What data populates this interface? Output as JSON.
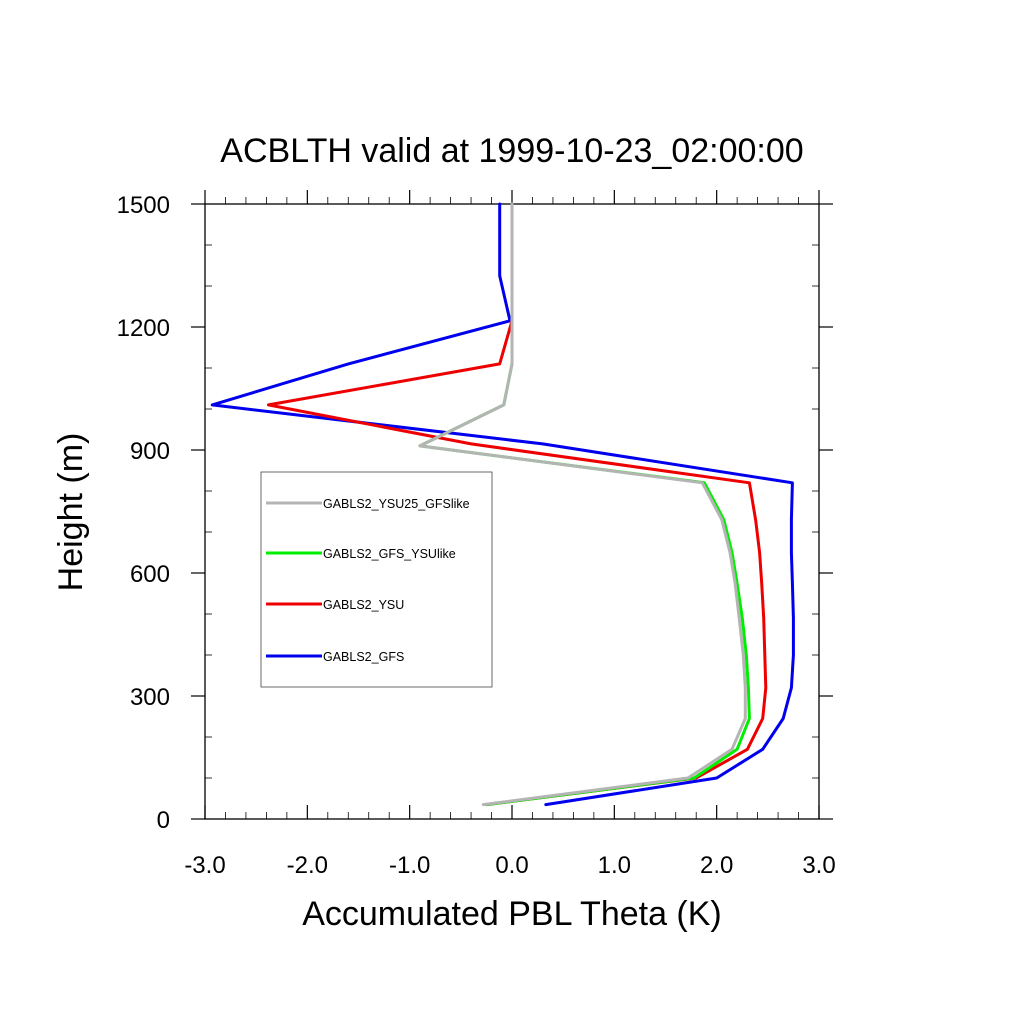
{
  "chart_data": {
    "type": "line",
    "title": "ACBLTH valid at 1999-10-23_02:00:00",
    "xlabel": "Accumulated PBL Theta (K)",
    "ylabel": "Height (m)",
    "xlim": [
      -3.0,
      3.0
    ],
    "ylim": [
      0,
      1500
    ],
    "xticks": [
      -3.0,
      -2.0,
      -1.0,
      0.0,
      1.0,
      2.0,
      3.0
    ],
    "xtick_labels": [
      "-3.0",
      "-2.0",
      "-1.0",
      "0.0",
      "1.0",
      "2.0",
      "3.0"
    ],
    "yticks": [
      0,
      300,
      600,
      900,
      1200,
      1500
    ],
    "ytick_labels": [
      "0",
      "300",
      "600",
      "900",
      "1200",
      "1500"
    ],
    "grid": false,
    "legend_position": "left-middle",
    "series": [
      {
        "name": "GABLS2_GFS",
        "color": "#0000ee",
        "points": [
          [
            0.33,
            35
          ],
          [
            2.0,
            100
          ],
          [
            2.45,
            170
          ],
          [
            2.65,
            245
          ],
          [
            2.73,
            320
          ],
          [
            2.75,
            400
          ],
          [
            2.75,
            490
          ],
          [
            2.74,
            575
          ],
          [
            2.73,
            650
          ],
          [
            2.73,
            730
          ],
          [
            2.74,
            820
          ],
          [
            0.3,
            915
          ],
          [
            -2.93,
            1010
          ],
          [
            -1.6,
            1110
          ],
          [
            -0.02,
            1215
          ],
          [
            -0.12,
            1325
          ],
          [
            -0.12,
            1500
          ]
        ]
      },
      {
        "name": "GABLS2_YSU",
        "color": "#ee0000",
        "points": [
          [
            -0.25,
            35
          ],
          [
            1.8,
            100
          ],
          [
            2.3,
            170
          ],
          [
            2.45,
            245
          ],
          [
            2.48,
            320
          ],
          [
            2.47,
            400
          ],
          [
            2.46,
            490
          ],
          [
            2.44,
            575
          ],
          [
            2.42,
            650
          ],
          [
            2.38,
            730
          ],
          [
            2.32,
            820
          ],
          [
            -0.4,
            915
          ],
          [
            -2.38,
            1010
          ],
          [
            -0.12,
            1110
          ],
          [
            0.0,
            1215
          ],
          [
            0.0,
            1325
          ],
          [
            0.0,
            1500
          ]
        ]
      },
      {
        "name": "GABLS2_GFS_YSUlike",
        "color": "#00ee00",
        "points": [
          [
            -0.25,
            35
          ],
          [
            1.78,
            100
          ],
          [
            2.2,
            170
          ],
          [
            2.32,
            245
          ],
          [
            2.31,
            320
          ],
          [
            2.29,
            400
          ],
          [
            2.25,
            490
          ],
          [
            2.2,
            575
          ],
          [
            2.15,
            650
          ],
          [
            2.07,
            730
          ],
          [
            1.88,
            820
          ],
          [
            -0.9,
            910
          ],
          [
            -0.08,
            1010
          ],
          [
            0.0,
            1110
          ],
          [
            0.0,
            1215
          ],
          [
            0.0,
            1325
          ],
          [
            0.0,
            1500
          ]
        ]
      },
      {
        "name": "GABLS2_YSU25_GFSlike",
        "color": "#b4b4b4",
        "points": [
          [
            -0.28,
            35
          ],
          [
            1.72,
            100
          ],
          [
            2.15,
            170
          ],
          [
            2.28,
            245
          ],
          [
            2.28,
            320
          ],
          [
            2.26,
            400
          ],
          [
            2.22,
            490
          ],
          [
            2.18,
            575
          ],
          [
            2.13,
            650
          ],
          [
            2.05,
            730
          ],
          [
            1.86,
            820
          ],
          [
            -0.9,
            910
          ],
          [
            -0.08,
            1010
          ],
          [
            0.0,
            1110
          ],
          [
            0.0,
            1215
          ],
          [
            0.0,
            1325
          ],
          [
            0.0,
            1500
          ]
        ]
      }
    ],
    "legend_order": [
      "GABLS2_YSU25_GFSlike",
      "GABLS2_GFS_YSUlike",
      "GABLS2_YSU",
      "GABLS2_GFS"
    ]
  }
}
